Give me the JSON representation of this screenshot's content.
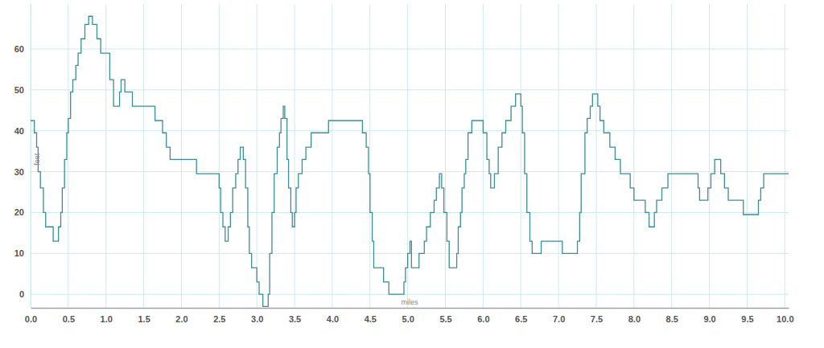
{
  "chart_data": {
    "type": "line",
    "line_style": "step",
    "color": "#3b8e99",
    "grid": true,
    "x_label": "miles",
    "y_label": "feet",
    "xlim": [
      0,
      10.05
    ],
    "ylim": [
      -3.3,
      71
    ],
    "xticks": [
      {
        "value": 0,
        "label": "0.0"
      },
      {
        "value": 0.5,
        "label": "0.5"
      },
      {
        "value": 1,
        "label": "1.0"
      },
      {
        "value": 1.5,
        "label": "1.5"
      },
      {
        "value": 2,
        "label": "2.0"
      },
      {
        "value": 2.5,
        "label": "2.5"
      },
      {
        "value": 3,
        "label": "3.0"
      },
      {
        "value": 3.5,
        "label": "3.5"
      },
      {
        "value": 4,
        "label": "4.0"
      },
      {
        "value": 4.5,
        "label": "4.5"
      },
      {
        "value": 5,
        "label": "5.0"
      },
      {
        "value": 5.5,
        "label": "5.5"
      },
      {
        "value": 6,
        "label": "6.0"
      },
      {
        "value": 6.5,
        "label": "6.5"
      },
      {
        "value": 7,
        "label": "7.0"
      },
      {
        "value": 7.5,
        "label": "7.5"
      },
      {
        "value": 8,
        "label": "8.0"
      },
      {
        "value": 8.5,
        "label": "8.5"
      },
      {
        "value": 9,
        "label": "9.0"
      },
      {
        "value": 9.5,
        "label": "9.5"
      },
      {
        "value": 10,
        "label": "10.0"
      }
    ],
    "yticks": [
      0,
      10,
      20,
      30,
      40,
      50,
      60
    ],
    "x": [
      0,
      0.05,
      0.08,
      0.1,
      0.13,
      0.17,
      0.2,
      0.3,
      0.37,
      0.4,
      0.42,
      0.45,
      0.48,
      0.5,
      0.53,
      0.56,
      0.6,
      0.63,
      0.67,
      0.72,
      0.77,
      0.82,
      0.88,
      0.93,
      1.05,
      1.1,
      1.18,
      1.2,
      1.25,
      1.35,
      1.6,
      1.65,
      1.75,
      1.8,
      1.85,
      2.15,
      2.2,
      2.45,
      2.5,
      2.52,
      2.55,
      2.58,
      2.62,
      2.65,
      2.68,
      2.72,
      2.75,
      2.78,
      2.82,
      2.85,
      2.88,
      2.9,
      2.93,
      3.0,
      3.03,
      3.08,
      3.15,
      3.17,
      3.2,
      3.23,
      3.27,
      3.3,
      3.32,
      3.35,
      3.37,
      3.4,
      3.42,
      3.45,
      3.47,
      3.5,
      3.52,
      3.55,
      3.6,
      3.65,
      3.72,
      3.95,
      4.4,
      4.45,
      4.48,
      4.5,
      4.53,
      4.55,
      4.68,
      4.75,
      4.95,
      4.97,
      5.0,
      5.03,
      5.05,
      5.15,
      5.22,
      5.25,
      5.3,
      5.35,
      5.38,
      5.42,
      5.45,
      5.48,
      5.52,
      5.55,
      5.65,
      5.67,
      5.7,
      5.72,
      5.75,
      5.77,
      5.8,
      5.85,
      6.0,
      6.05,
      6.08,
      6.1,
      6.15,
      6.2,
      6.25,
      6.3,
      6.37,
      6.43,
      6.5,
      6.52,
      6.55,
      6.58,
      6.62,
      6.65,
      6.77,
      7.05,
      7.25,
      7.28,
      7.3,
      7.35,
      7.38,
      7.42,
      7.45,
      7.52,
      7.55,
      7.6,
      7.68,
      7.75,
      7.82,
      7.95,
      8.0,
      8.15,
      8.2,
      8.27,
      8.3,
      8.37,
      8.45,
      8.85,
      8.87,
      8.98,
      9.02,
      9.07,
      9.15,
      9.2,
      9.25,
      9.45,
      9.65,
      9.68,
      9.72,
      10.05
    ],
    "values": [
      42.5,
      39.5,
      36,
      30,
      26,
      20,
      16.5,
      13,
      16.5,
      20,
      26,
      33,
      39.5,
      43,
      49.5,
      52.5,
      56,
      59,
      62.5,
      66,
      68,
      66,
      62.5,
      59,
      52.5,
      46,
      49.5,
      52.5,
      49.5,
      46,
      46,
      42.5,
      39.5,
      36,
      33,
      33,
      29.5,
      29.5,
      26,
      20,
      16.5,
      13,
      16.5,
      20,
      26,
      29.5,
      33,
      36,
      33,
      26,
      16.5,
      10,
      6.5,
      3,
      0,
      -3,
      0,
      10,
      20,
      29.5,
      36,
      39.5,
      43,
      46,
      43,
      33,
      26,
      20,
      16.5,
      20,
      26,
      29.5,
      33,
      36,
      39.5,
      42.5,
      39.5,
      36,
      29.5,
      20,
      13,
      6.5,
      3,
      0,
      3,
      6.5,
      10,
      13,
      6.5,
      10,
      13,
      16.5,
      20,
      23,
      26,
      29.5,
      26,
      20,
      13,
      6.5,
      10,
      16.5,
      20,
      26,
      29.5,
      33,
      39.5,
      42.5,
      39.5,
      33,
      29.5,
      26,
      29.5,
      36,
      39.5,
      42.5,
      46,
      49,
      46,
      39.5,
      29.5,
      20,
      13,
      10,
      13,
      10,
      13,
      20,
      29.5,
      39.5,
      43,
      46,
      49,
      46,
      42.5,
      39.5,
      36,
      33,
      29.5,
      26,
      23,
      20,
      16.5,
      20,
      23,
      26,
      29.5,
      26,
      23,
      26,
      29.5,
      33,
      29.5,
      26,
      23,
      19.5,
      23,
      26,
      29.5,
      29.5
    ]
  }
}
